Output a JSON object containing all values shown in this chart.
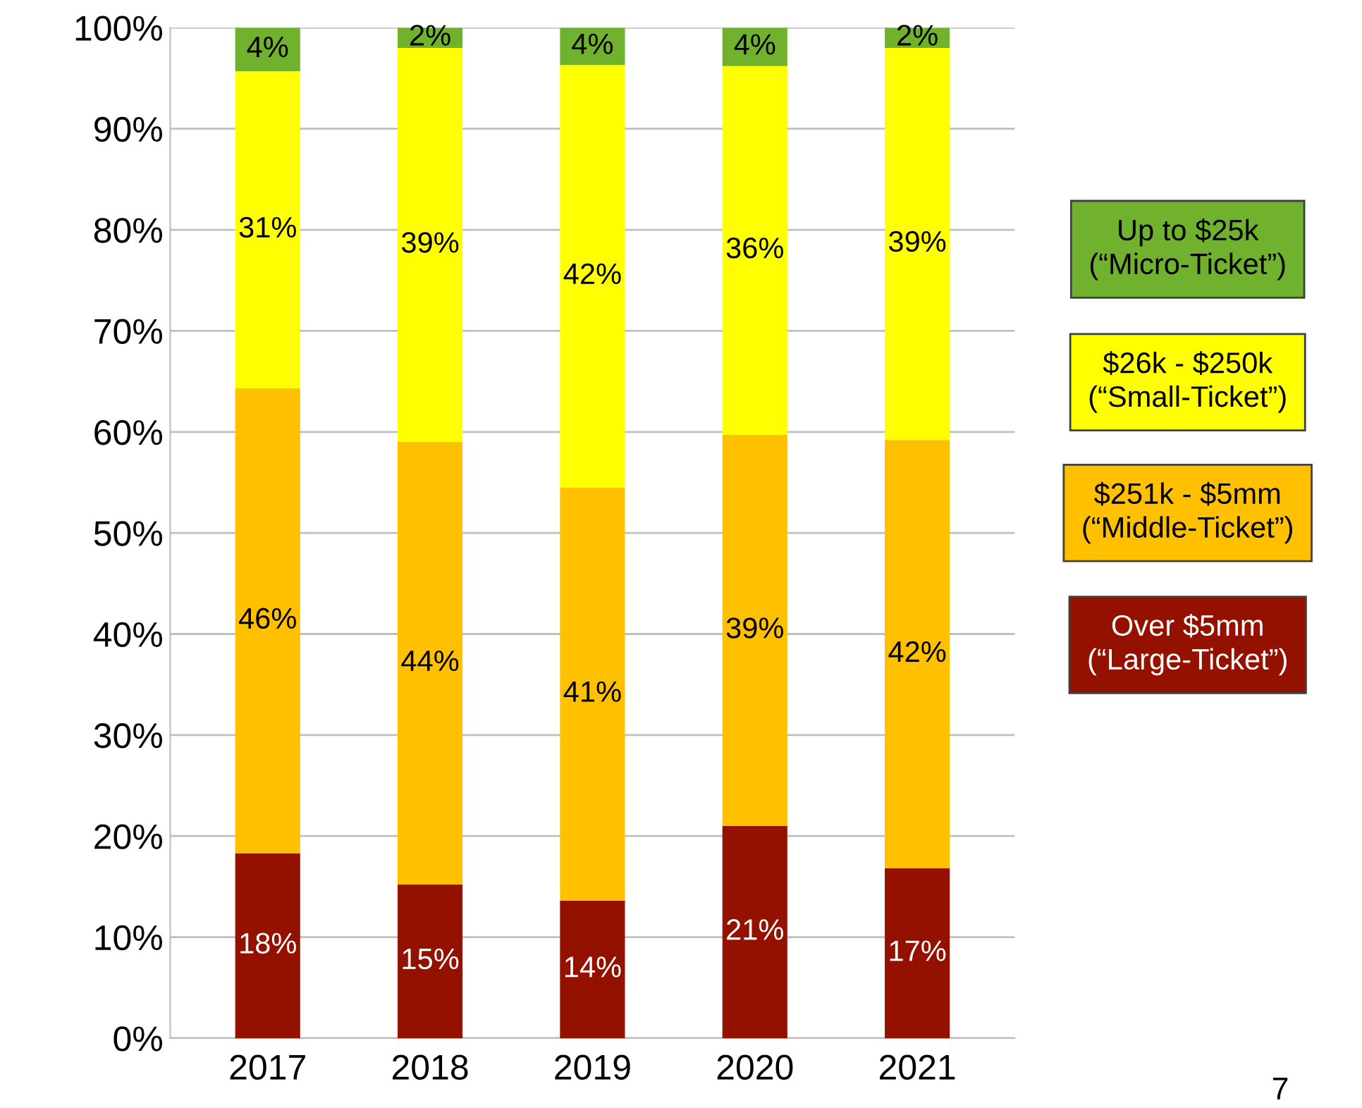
{
  "chart_data": {
    "type": "bar",
    "stacked": true,
    "categories": [
      "2017",
      "2018",
      "2019",
      "2020",
      "2021"
    ],
    "series": [
      {
        "name": "Over $5mm\n(“Large-Ticket”)",
        "color": "#941100",
        "values": [
          18.3,
          15.2,
          13.6,
          21.0,
          16.8
        ],
        "value_labels": [
          "18%",
          "15%",
          "14%",
          "21%",
          "17%"
        ]
      },
      {
        "name": "$251k - $5mm\n(“Middle-Ticket”)",
        "color": "#ffc000",
        "values": [
          46.0,
          43.8,
          40.9,
          38.7,
          42.4
        ],
        "value_labels": [
          "46%",
          "44%",
          "41%",
          "39%",
          "42%"
        ]
      },
      {
        "name": "$26k - $250k\n(“Small-Ticket”)",
        "color": "#ffff00",
        "values": [
          31.4,
          39.0,
          41.8,
          36.5,
          38.8
        ],
        "value_labels": [
          "31%",
          "39%",
          "42%",
          "36%",
          "39%"
        ]
      },
      {
        "name": "Up to $25k\n(“Micro-Ticket”)",
        "color": "#70b12d",
        "values": [
          4.3,
          2.0,
          3.7,
          3.8,
          2.0
        ],
        "value_labels": [
          "4%",
          "2%",
          "4%",
          "4%",
          "2%"
        ]
      }
    ],
    "ylim": [
      0,
      100
    ],
    "yticks": [
      {
        "value": 0,
        "label": "0%"
      },
      {
        "value": 10,
        "label": "10%"
      },
      {
        "value": 20,
        "label": "20%"
      },
      {
        "value": 30,
        "label": "30%"
      },
      {
        "value": 40,
        "label": "40%"
      },
      {
        "value": 50,
        "label": "50%"
      },
      {
        "value": 60,
        "label": "60%"
      },
      {
        "value": 70,
        "label": "70%"
      },
      {
        "value": 80,
        "label": "80%"
      },
      {
        "value": 90,
        "label": "90%"
      },
      {
        "value": 100,
        "label": "100%"
      }
    ],
    "grid": "y",
    "legend": "right",
    "annotations": [
      "7"
    ]
  }
}
